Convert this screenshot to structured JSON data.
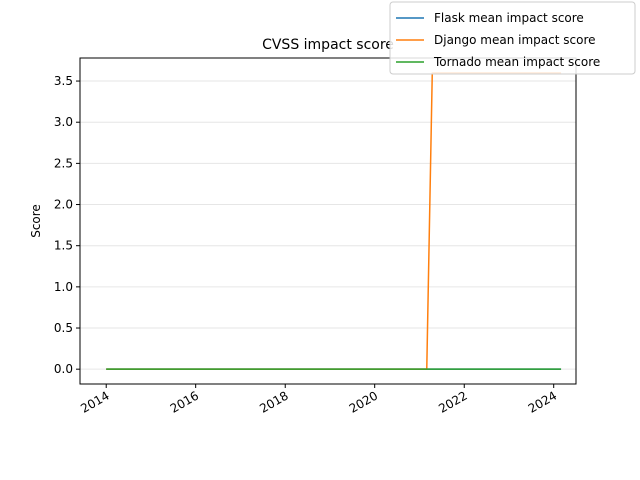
{
  "chart_data": {
    "type": "line",
    "title": "CVSS impact score",
    "xlabel": "",
    "ylabel": "Score",
    "xlim": [
      "2013-06-01",
      "2024-07-01"
    ],
    "ylim": [
      -0.18,
      3.78
    ],
    "x_ticks": [
      "2014",
      "2016",
      "2018",
      "2020",
      "2022",
      "2024"
    ],
    "y_ticks": [
      "0.0",
      "0.5",
      "1.0",
      "1.5",
      "2.0",
      "2.5",
      "3.0",
      "3.5"
    ],
    "grid": "horizontal",
    "legend_position": "top-right",
    "series": [
      {
        "name": "Flask mean impact score",
        "color": "#1f77b4",
        "points": [
          [
            "2014-01-01",
            0
          ],
          [
            "2024-03-01",
            0
          ]
        ]
      },
      {
        "name": "Django mean impact score",
        "color": "#ff7f0e",
        "points": [
          [
            "2014-01-01",
            0
          ],
          [
            "2021-03-01",
            0
          ],
          [
            "2021-04-15",
            3.6
          ],
          [
            "2024-03-01",
            3.6
          ]
        ]
      },
      {
        "name": "Tornado mean impact score",
        "color": "#2ca02c",
        "points": [
          [
            "2014-01-01",
            0
          ],
          [
            "2024-03-01",
            0
          ]
        ]
      }
    ]
  }
}
